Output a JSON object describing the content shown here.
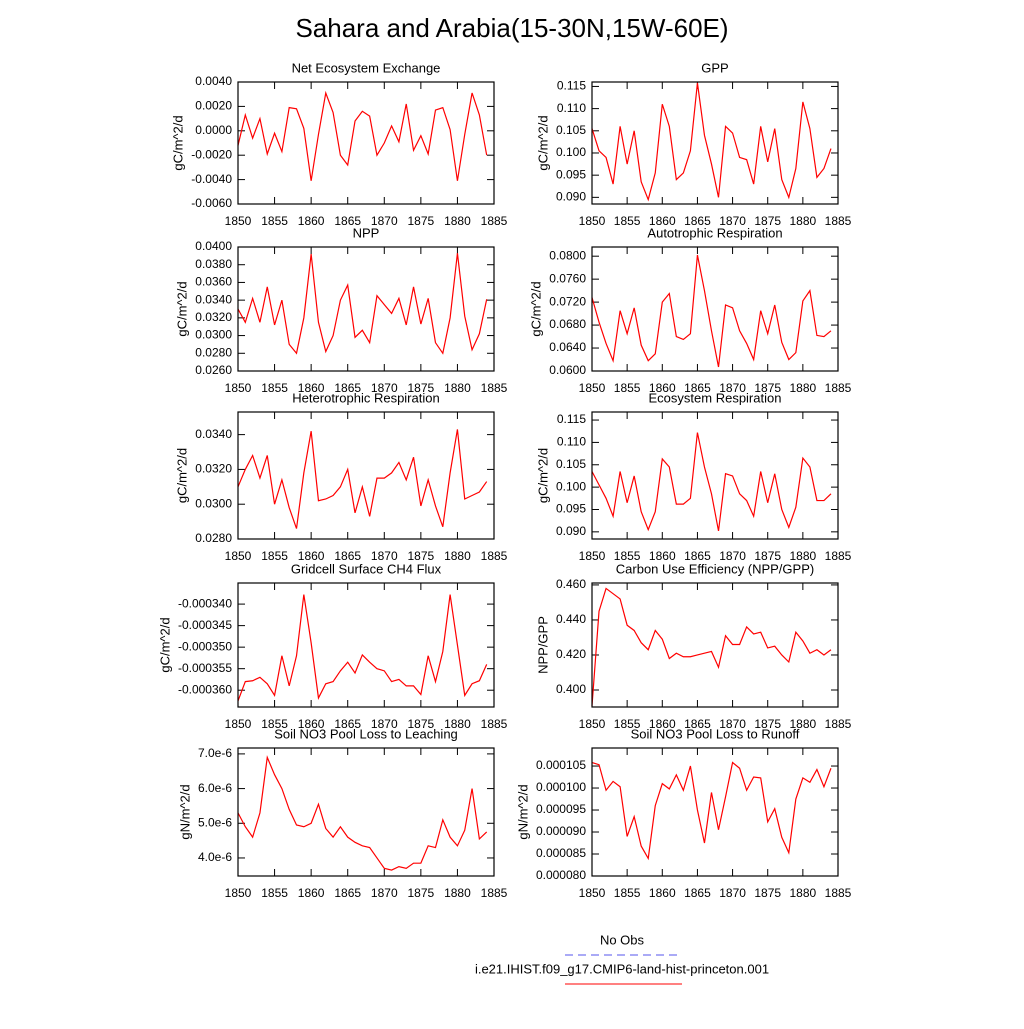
{
  "title": "Sahara and Arabia(15-30N,15W-60E)",
  "legend": [
    {
      "name": "No Obs",
      "color": "#5555ee",
      "dashed": true
    },
    {
      "name": "i.e21.IHIST.f09_g17.CMIP6-land-hist-princeton.001",
      "color": "#ff0000",
      "dashed": false
    }
  ],
  "chart_data": [
    {
      "type": "line",
      "title": "Net Ecosystem Exchange",
      "ylabel": "gC/m^2/d",
      "color": "#ff0000",
      "x": [
        1850,
        1851,
        1852,
        1853,
        1854,
        1855,
        1856,
        1857,
        1858,
        1859,
        1860,
        1861,
        1862,
        1863,
        1864,
        1865,
        1866,
        1867,
        1868,
        1869,
        1870,
        1871,
        1872,
        1873,
        1874,
        1875,
        1876,
        1877,
        1878,
        1879,
        1880,
        1881,
        1882,
        1883,
        1884
      ],
      "values": [
        -0.0012,
        0.0013,
        -0.0006,
        0.001,
        -0.0019,
        -0.0002,
        -0.0017,
        0.0019,
        0.0018,
        0.0002,
        -0.0041,
        -0.0003,
        0.0031,
        0.0015,
        -0.002,
        -0.0028,
        0.0008,
        0.0016,
        0.0012,
        -0.002,
        -0.001,
        0.0004,
        -0.0009,
        0.0022,
        -0.0016,
        -0.0004,
        -0.0019,
        0.0017,
        0.0019,
        0.0001,
        -0.0041,
        -0.0003,
        0.0031,
        0.0013,
        -0.002
      ],
      "xlim": [
        1850,
        1885
      ],
      "xticks": [
        1850,
        1855,
        1860,
        1865,
        1870,
        1875,
        1880,
        1885
      ],
      "ylim": [
        -0.006,
        0.004
      ],
      "yticks": [
        {
          "value": -0.006,
          "label": "-0.0060"
        },
        {
          "value": -0.004,
          "label": "-0.0040"
        },
        {
          "value": -0.002,
          "label": "-0.0020"
        },
        {
          "value": 0,
          "label": "0.0000"
        },
        {
          "value": 0.002,
          "label": "0.0020"
        },
        {
          "value": 0.004,
          "label": "0.0040"
        }
      ]
    },
    {
      "type": "line",
      "title": "GPP",
      "ylabel": "gC/m^2/d",
      "color": "#ff0000",
      "x": [
        1850,
        1851,
        1852,
        1853,
        1854,
        1855,
        1856,
        1857,
        1858,
        1859,
        1860,
        1861,
        1862,
        1863,
        1864,
        1865,
        1866,
        1867,
        1868,
        1869,
        1870,
        1871,
        1872,
        1873,
        1874,
        1875,
        1876,
        1877,
        1878,
        1879,
        1880,
        1881,
        1882,
        1883,
        1884
      ],
      "values": [
        0.1055,
        0.1005,
        0.099,
        0.093,
        0.106,
        0.0975,
        0.105,
        0.0935,
        0.0895,
        0.0955,
        0.111,
        0.106,
        0.094,
        0.0955,
        0.1005,
        0.1158,
        0.104,
        0.0975,
        0.09,
        0.106,
        0.1045,
        0.099,
        0.0985,
        0.093,
        0.106,
        0.098,
        0.1055,
        0.094,
        0.09,
        0.0965,
        0.1115,
        0.1055,
        0.0945,
        0.0965,
        0.101
      ],
      "xlim": [
        1850,
        1885
      ],
      "xticks": [
        1850,
        1855,
        1860,
        1865,
        1870,
        1875,
        1880,
        1885
      ],
      "ylim": [
        0.0885,
        0.116
      ],
      "yticks": [
        {
          "value": 0.09,
          "label": "0.090"
        },
        0.095,
        {
          "value": 0.1,
          "label": "0.100"
        },
        0.105,
        {
          "value": 0.11,
          "label": "0.110"
        },
        0.115
      ]
    },
    {
      "type": "line",
      "title": "NPP",
      "ylabel": "gC/m^2/d",
      "color": "#ff0000",
      "x": [
        1850,
        1851,
        1852,
        1853,
        1854,
        1855,
        1856,
        1857,
        1858,
        1859,
        1860,
        1861,
        1862,
        1863,
        1864,
        1865,
        1866,
        1867,
        1868,
        1869,
        1870,
        1871,
        1872,
        1873,
        1874,
        1875,
        1876,
        1877,
        1878,
        1879,
        1880,
        1881,
        1882,
        1883,
        1884
      ],
      "values": [
        0.033,
        0.0315,
        0.0342,
        0.0315,
        0.0355,
        0.0312,
        0.034,
        0.029,
        0.028,
        0.032,
        0.0392,
        0.0315,
        0.0282,
        0.03,
        0.034,
        0.0357,
        0.0298,
        0.0306,
        0.0292,
        0.0345,
        0.0335,
        0.0325,
        0.0342,
        0.0312,
        0.0355,
        0.0313,
        0.0342,
        0.0292,
        0.028,
        0.032,
        0.0393,
        0.0322,
        0.0284,
        0.0302,
        0.0341
      ],
      "xlim": [
        1850,
        1885
      ],
      "xticks": [
        1850,
        1855,
        1860,
        1865,
        1870,
        1875,
        1880,
        1885
      ],
      "ylim": [
        0.026,
        0.04
      ],
      "yticks": [
        {
          "value": 0.026,
          "label": "0.0260"
        },
        {
          "value": 0.028,
          "label": "0.0280"
        },
        {
          "value": 0.03,
          "label": "0.0300"
        },
        {
          "value": 0.032,
          "label": "0.0320"
        },
        {
          "value": 0.034,
          "label": "0.0340"
        },
        {
          "value": 0.036,
          "label": "0.0360"
        },
        {
          "value": 0.038,
          "label": "0.0380"
        },
        {
          "value": 0.04,
          "label": "0.0400"
        }
      ]
    },
    {
      "type": "line",
      "title": "Autotrophic Respiration",
      "ylabel": "gC/m^2/d",
      "color": "#ff0000",
      "x": [
        1850,
        1851,
        1852,
        1853,
        1854,
        1855,
        1856,
        1857,
        1858,
        1859,
        1860,
        1861,
        1862,
        1863,
        1864,
        1865,
        1866,
        1867,
        1868,
        1869,
        1870,
        1871,
        1872,
        1873,
        1874,
        1875,
        1876,
        1877,
        1878,
        1879,
        1880,
        1881,
        1882,
        1883,
        1884
      ],
      "values": [
        0.0728,
        0.0685,
        0.0648,
        0.0618,
        0.0705,
        0.0665,
        0.071,
        0.0645,
        0.0618,
        0.063,
        0.072,
        0.0735,
        0.066,
        0.0655,
        0.0665,
        0.0802,
        0.074,
        0.067,
        0.0607,
        0.0715,
        0.071,
        0.067,
        0.0648,
        0.062,
        0.0705,
        0.0665,
        0.0715,
        0.065,
        0.062,
        0.0632,
        0.0722,
        0.074,
        0.0662,
        0.066,
        0.067
      ],
      "xlim": [
        1850,
        1885
      ],
      "xticks": [
        1850,
        1855,
        1860,
        1865,
        1870,
        1875,
        1880,
        1885
      ],
      "ylim": [
        0.06,
        0.0816
      ],
      "yticks": [
        {
          "value": 0.06,
          "label": "0.0600"
        },
        {
          "value": 0.064,
          "label": "0.0640"
        },
        {
          "value": 0.068,
          "label": "0.0680"
        },
        {
          "value": 0.072,
          "label": "0.0720"
        },
        {
          "value": 0.076,
          "label": "0.0760"
        },
        {
          "value": 0.08,
          "label": "0.0800"
        }
      ]
    },
    {
      "type": "line",
      "title": "Heterotrophic Respiration",
      "ylabel": "gC/m^2/d",
      "color": "#ff0000",
      "x": [
        1850,
        1851,
        1852,
        1853,
        1854,
        1855,
        1856,
        1857,
        1858,
        1859,
        1860,
        1861,
        1862,
        1863,
        1864,
        1865,
        1866,
        1867,
        1868,
        1869,
        1870,
        1871,
        1872,
        1873,
        1874,
        1875,
        1876,
        1877,
        1878,
        1879,
        1880,
        1881,
        1882,
        1883,
        1884
      ],
      "values": [
        0.031,
        0.032,
        0.0328,
        0.0315,
        0.0328,
        0.03,
        0.0314,
        0.0298,
        0.0286,
        0.0318,
        0.0342,
        0.0302,
        0.0303,
        0.0305,
        0.031,
        0.032,
        0.0295,
        0.031,
        0.0293,
        0.0315,
        0.0315,
        0.0318,
        0.0324,
        0.0314,
        0.0327,
        0.0299,
        0.0314,
        0.0299,
        0.0287,
        0.0318,
        0.0343,
        0.0303,
        0.0305,
        0.0307,
        0.0313
      ],
      "xlim": [
        1850,
        1885
      ],
      "xticks": [
        1850,
        1855,
        1860,
        1865,
        1870,
        1875,
        1880,
        1885
      ],
      "ylim": [
        0.028,
        0.0353
      ],
      "yticks": [
        {
          "value": 0.028,
          "label": "0.0280"
        },
        {
          "value": 0.03,
          "label": "0.0300"
        },
        {
          "value": 0.032,
          "label": "0.0320"
        },
        {
          "value": 0.034,
          "label": "0.0340"
        }
      ]
    },
    {
      "type": "line",
      "title": "Ecosystem Respiration",
      "ylabel": "gC/m^2/d",
      "color": "#ff0000",
      "x": [
        1850,
        1851,
        1852,
        1853,
        1854,
        1855,
        1856,
        1857,
        1858,
        1859,
        1860,
        1861,
        1862,
        1863,
        1864,
        1865,
        1866,
        1867,
        1868,
        1869,
        1870,
        1871,
        1872,
        1873,
        1874,
        1875,
        1876,
        1877,
        1878,
        1879,
        1880,
        1881,
        1882,
        1883,
        1884
      ],
      "values": [
        0.1035,
        0.1005,
        0.0975,
        0.0935,
        0.1035,
        0.0965,
        0.1025,
        0.0945,
        0.0905,
        0.0945,
        0.1063,
        0.1045,
        0.0962,
        0.0962,
        0.0975,
        0.1122,
        0.1045,
        0.0985,
        0.0902,
        0.103,
        0.1025,
        0.0985,
        0.097,
        0.0935,
        0.1035,
        0.0965,
        0.103,
        0.095,
        0.091,
        0.0955,
        0.1065,
        0.1045,
        0.097,
        0.097,
        0.0985
      ],
      "xlim": [
        1850,
        1885
      ],
      "xticks": [
        1850,
        1855,
        1860,
        1865,
        1870,
        1875,
        1880,
        1885
      ],
      "ylim": [
        0.0884,
        0.1168
      ],
      "yticks": [
        {
          "value": 0.09,
          "label": "0.090"
        },
        0.095,
        {
          "value": 0.1,
          "label": "0.100"
        },
        0.105,
        {
          "value": 0.11,
          "label": "0.110"
        },
        0.115
      ]
    },
    {
      "type": "line",
      "title": "Gridcell Surface CH4 Flux",
      "ylabel": "gC/m^2/d",
      "color": "#ff0000",
      "x": [
        1850,
        1851,
        1852,
        1853,
        1854,
        1855,
        1856,
        1857,
        1858,
        1859,
        1860,
        1861,
        1862,
        1863,
        1864,
        1865,
        1866,
        1867,
        1868,
        1869,
        1870,
        1871,
        1872,
        1873,
        1874,
        1875,
        1876,
        1877,
        1878,
        1879,
        1880,
        1881,
        1882,
        1883,
        1884
      ],
      "values": [
        -0.0003625,
        -0.000358,
        -0.0003578,
        -0.000357,
        -0.0003585,
        -0.0003612,
        -0.000352,
        -0.000359,
        -0.000352,
        -0.0003378,
        -0.000349,
        -0.0003618,
        -0.0003585,
        -0.000358,
        -0.0003555,
        -0.0003535,
        -0.000356,
        -0.0003518,
        -0.0003535,
        -0.000355,
        -0.0003555,
        -0.000358,
        -0.0003575,
        -0.000359,
        -0.000359,
        -0.000361,
        -0.000352,
        -0.000358,
        -0.000351,
        -0.0003378,
        -0.0003495,
        -0.0003612,
        -0.0003585,
        -0.0003578,
        -0.000354
      ],
      "xlim": [
        1850,
        1885
      ],
      "xticks": [
        1850,
        1855,
        1860,
        1865,
        1870,
        1875,
        1880,
        1885
      ],
      "ylim": [
        -0.0003639,
        -0.0003351
      ],
      "yticks": [
        {
          "value": -0.00036,
          "label": "-0.000360"
        },
        {
          "value": -0.000355,
          "label": "-0.000355"
        },
        {
          "value": -0.00035,
          "label": "-0.000350"
        },
        {
          "value": -0.000345,
          "label": "-0.000345"
        },
        {
          "value": -0.00034,
          "label": "-0.000340"
        }
      ]
    },
    {
      "type": "line",
      "title": "Carbon Use Efficiency (NPP/GPP)",
      "ylabel": "NPP/GPP",
      "color": "#ff0000",
      "x": [
        1850,
        1851,
        1852,
        1853,
        1854,
        1855,
        1856,
        1857,
        1858,
        1859,
        1860,
        1861,
        1862,
        1863,
        1864,
        1865,
        1866,
        1867,
        1868,
        1869,
        1870,
        1871,
        1872,
        1873,
        1874,
        1875,
        1876,
        1877,
        1878,
        1879,
        1880,
        1881,
        1882,
        1883,
        1884
      ],
      "values": [
        0.391,
        0.445,
        0.458,
        0.455,
        0.452,
        0.437,
        0.434,
        0.427,
        0.423,
        0.434,
        0.429,
        0.418,
        0.421,
        0.419,
        0.419,
        0.42,
        0.421,
        0.422,
        0.413,
        0.431,
        0.426,
        0.426,
        0.436,
        0.432,
        0.433,
        0.424,
        0.425,
        0.42,
        0.416,
        0.433,
        0.428,
        0.421,
        0.423,
        0.42,
        0.423
      ],
      "xlim": [
        1850,
        1885
      ],
      "xticks": [
        1850,
        1855,
        1860,
        1865,
        1870,
        1875,
        1880,
        1885
      ],
      "ylim": [
        0.3903,
        0.4611
      ],
      "yticks": [
        {
          "value": 0.4,
          "label": "0.400"
        },
        {
          "value": 0.42,
          "label": "0.420"
        },
        {
          "value": 0.44,
          "label": "0.440"
        },
        {
          "value": 0.46,
          "label": "0.460"
        }
      ]
    },
    {
      "type": "line",
      "title": "Soil NO3 Pool Loss to Leaching",
      "ylabel": "gN/m^2/d",
      "color": "#ff0000",
      "x": [
        1850,
        1851,
        1852,
        1853,
        1854,
        1855,
        1856,
        1857,
        1858,
        1859,
        1860,
        1861,
        1862,
        1863,
        1864,
        1865,
        1866,
        1867,
        1868,
        1869,
        1870,
        1871,
        1872,
        1873,
        1874,
        1875,
        1876,
        1877,
        1878,
        1879,
        1880,
        1881,
        1882,
        1883,
        1884
      ],
      "values": [
        5.3e-06,
        4.9e-06,
        4.6e-06,
        5.3e-06,
        6.9e-06,
        6.4e-06,
        6e-06,
        5.4e-06,
        4.95e-06,
        4.9e-06,
        5e-06,
        5.55e-06,
        4.85e-06,
        4.6e-06,
        4.9e-06,
        4.6e-06,
        4.45e-06,
        4.35e-06,
        4.3e-06,
        4e-06,
        3.7e-06,
        3.65e-06,
        3.75e-06,
        3.7e-06,
        3.85e-06,
        3.85e-06,
        4.35e-06,
        4.3e-06,
        5.1e-06,
        4.6e-06,
        4.35e-06,
        4.8e-06,
        6e-06,
        4.55e-06,
        4.75e-06
      ],
      "xlim": [
        1850,
        1885
      ],
      "xticks": [
        1850,
        1855,
        1860,
        1865,
        1870,
        1875,
        1880,
        1885
      ],
      "ylim": [
        3.48e-06,
        7.17e-06
      ],
      "yticks": [
        {
          "value": 4e-06,
          "label": "4.0e-6"
        },
        {
          "value": 5e-06,
          "label": "5.0e-6"
        },
        {
          "value": 6e-06,
          "label": "6.0e-6"
        },
        {
          "value": 7e-06,
          "label": "7.0e-6"
        }
      ]
    },
    {
      "type": "line",
      "title": "Soil NO3 Pool Loss to Runoff",
      "ylabel": "gN/m^2/d",
      "color": "#ff0000",
      "x": [
        1850,
        1851,
        1852,
        1853,
        1854,
        1855,
        1856,
        1857,
        1858,
        1859,
        1860,
        1861,
        1862,
        1863,
        1864,
        1865,
        1866,
        1867,
        1868,
        1869,
        1870,
        1871,
        1872,
        1873,
        1874,
        1875,
        1876,
        1877,
        1878,
        1879,
        1880,
        1881,
        1882,
        1883,
        1884
      ],
      "values": [
        0.0001058,
        0.0001053,
        9.95e-05,
        0.0001015,
        0.0001003,
        8.9e-05,
        9.35e-05,
        8.68e-05,
        8.4e-05,
        9.6e-05,
        0.000101,
        9.98e-05,
        0.000103,
        9.95e-05,
        0.000105,
        9.5e-05,
        8.75e-05,
        9.9e-05,
        9.05e-05,
        9.8e-05,
        0.0001058,
        0.0001045,
        9.95e-05,
        0.0001025,
        0.0001023,
        9.23e-05,
        9.53e-05,
        8.88e-05,
        8.53e-05,
        9.75e-05,
        0.0001023,
        0.0001013,
        0.0001042,
        0.0001003,
        0.0001045
      ],
      "xlim": [
        1850,
        1885
      ],
      "xticks": [
        1850,
        1855,
        1860,
        1865,
        1870,
        1875,
        1880,
        1885
      ],
      "ylim": [
        8e-05,
        0.0001091
      ],
      "yticks": [
        {
          "value": 8e-05,
          "label": "0.000080"
        },
        {
          "value": 8.5e-05,
          "label": "0.000085"
        },
        {
          "value": 9e-05,
          "label": "0.000090"
        },
        {
          "value": 9.5e-05,
          "label": "0.000095"
        },
        {
          "value": 0.0001,
          "label": "0.000100"
        },
        {
          "value": 0.000105,
          "label": "0.000105"
        }
      ]
    }
  ]
}
